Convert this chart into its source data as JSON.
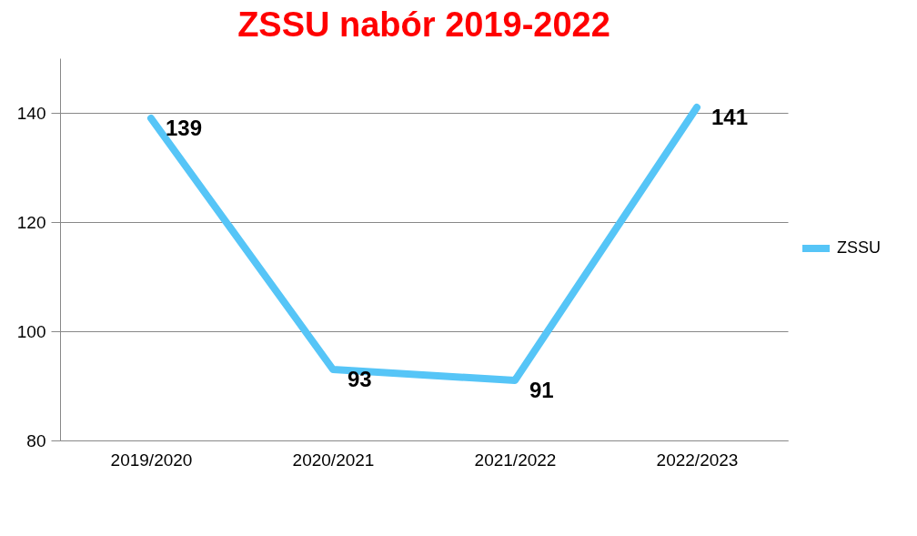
{
  "chart_data": {
    "type": "line",
    "title": "ZSSU nabór 2019-2022",
    "categories": [
      "2019/2020",
      "2020/2021",
      "2021/2022",
      "2022/2023"
    ],
    "series": [
      {
        "name": "ZSSU",
        "color": "#56c5f7",
        "values": [
          139,
          93,
          91,
          141
        ]
      }
    ],
    "ylim": [
      80,
      150
    ],
    "yticks": [
      80,
      100,
      120,
      140
    ],
    "grid": "y",
    "legend": "right",
    "data_labels": true,
    "marker": "none"
  }
}
